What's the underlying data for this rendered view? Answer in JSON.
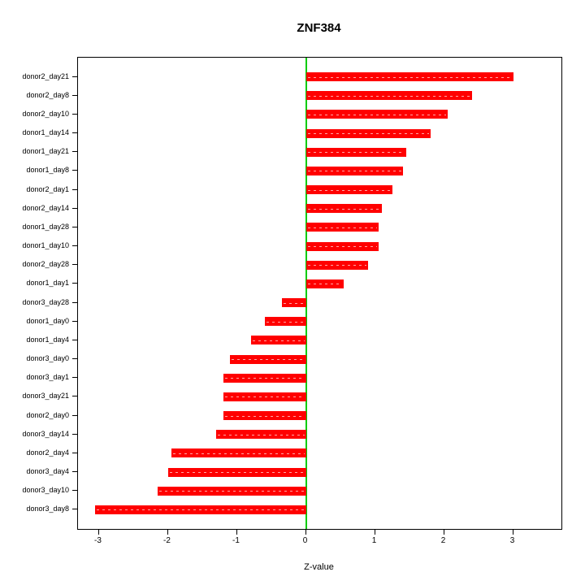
{
  "title": "ZNF384",
  "chart_data": {
    "type": "bar",
    "orientation": "horizontal",
    "title": "ZNF384",
    "xlabel": "Z-value",
    "ylabel": "",
    "categories": [
      "donor2_day21",
      "donor2_day8",
      "donor2_day10",
      "donor1_day14",
      "donor1_day21",
      "donor1_day8",
      "donor2_day1",
      "donor2_day14",
      "donor1_day28",
      "donor1_day10",
      "donor2_day28",
      "donor1_day1",
      "donor3_day28",
      "donor1_day0",
      "donor1_day4",
      "donor3_day0",
      "donor3_day1",
      "donor3_day21",
      "donor2_day0",
      "donor3_day14",
      "donor2_day4",
      "donor3_day4",
      "donor3_day10",
      "donor3_day8"
    ],
    "values": [
      3.0,
      2.4,
      2.05,
      1.8,
      1.45,
      1.4,
      1.25,
      1.1,
      1.05,
      1.05,
      0.9,
      0.55,
      -0.35,
      -0.6,
      -0.8,
      -1.1,
      -1.2,
      -1.2,
      -1.2,
      -1.3,
      -1.95,
      -2.0,
      -2.15,
      -3.05
    ],
    "xticks": [
      -3,
      -2,
      -1,
      0,
      1,
      2,
      3
    ],
    "xlim": [
      -3.3,
      3.7
    ],
    "bar_color": "#FF0000",
    "zero_line_color": "#00CC00",
    "axis_color": "#000000",
    "grid": false,
    "legend_position": "none"
  }
}
